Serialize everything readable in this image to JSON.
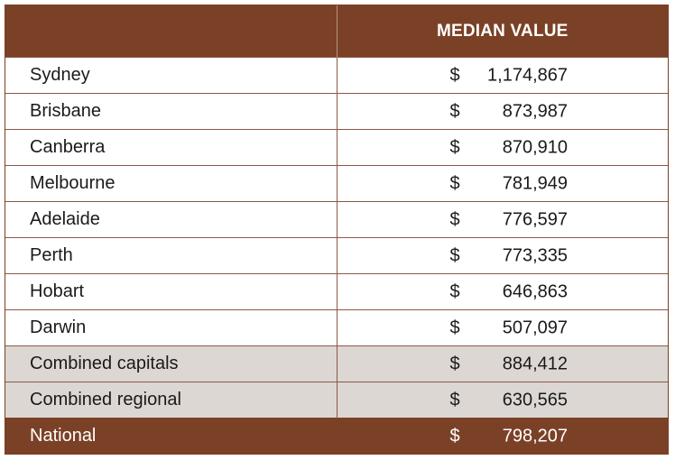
{
  "table": {
    "header": {
      "city": "",
      "value": "MEDIAN VALUE"
    },
    "currency_symbol": "$",
    "rows": [
      {
        "city": "Sydney",
        "value": "1,174,867",
        "style": "normal"
      },
      {
        "city": "Brisbane",
        "value": "873,987",
        "style": "normal"
      },
      {
        "city": "Canberra",
        "value": "870,910",
        "style": "normal"
      },
      {
        "city": "Melbourne",
        "value": "781,949",
        "style": "normal"
      },
      {
        "city": "Adelaide",
        "value": "776,597",
        "style": "normal"
      },
      {
        "city": "Perth",
        "value": "773,335",
        "style": "normal"
      },
      {
        "city": "Hobart",
        "value": "646,863",
        "style": "normal"
      },
      {
        "city": "Darwin",
        "value": "507,097",
        "style": "normal"
      },
      {
        "city": "Combined capitals",
        "value": "884,412",
        "style": "shaded"
      },
      {
        "city": "Combined regional",
        "value": "630,565",
        "style": "shaded"
      },
      {
        "city": "National",
        "value": "798,207",
        "style": "total"
      }
    ]
  },
  "colors": {
    "header_bg": "#7b4127",
    "header_text": "#ffffff",
    "shaded_bg": "#dcd7d3",
    "border": "#8a5a45"
  }
}
